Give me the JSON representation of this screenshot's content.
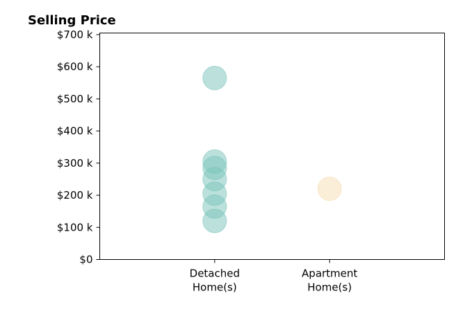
{
  "chart_data": {
    "type": "scatter",
    "title": "Selling Price",
    "categories": [
      "Detached\nHome(s)",
      "Apartment\nHome(s)"
    ],
    "y_ticks": [
      {
        "value": 0,
        "label": "$0"
      },
      {
        "value": 100000,
        "label": "$100 k"
      },
      {
        "value": 200000,
        "label": "$200 k"
      },
      {
        "value": 300000,
        "label": "$300 k"
      },
      {
        "value": 400000,
        "label": "$400 k"
      },
      {
        "value": 500000,
        "label": "$500 k"
      },
      {
        "value": 600000,
        "label": "$600 k"
      },
      {
        "value": 700000,
        "label": "$700 k"
      }
    ],
    "ylim": [
      0,
      705000
    ],
    "xlim": [
      0,
      3
    ],
    "grid": false,
    "series": [
      {
        "category": "Detached\nHome(s)",
        "color": "#7ac4b9",
        "values": [
          565000,
          305000,
          285000,
          250000,
          205000,
          165000,
          120000
        ]
      },
      {
        "category": "Apartment\nHome(s)",
        "color": "#f5deb3",
        "values": [
          220000
        ]
      }
    ]
  }
}
